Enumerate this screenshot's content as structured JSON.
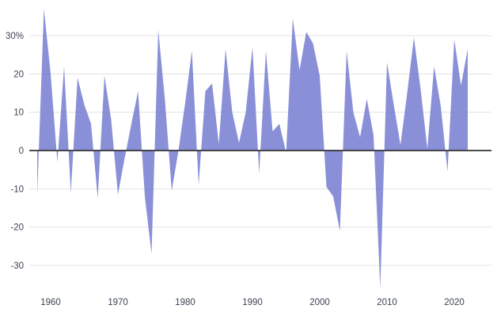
{
  "chart_data": {
    "type": "area",
    "title": "",
    "x_label": "",
    "y_label": "",
    "x": [
      1958,
      1959,
      1960,
      1961,
      1962,
      1963,
      1964,
      1965,
      1966,
      1967,
      1968,
      1969,
      1970,
      1971,
      1972,
      1973,
      1974,
      1975,
      1976,
      1977,
      1978,
      1979,
      1980,
      1981,
      1982,
      1983,
      1984,
      1985,
      1986,
      1987,
      1988,
      1989,
      1990,
      1991,
      1992,
      1993,
      1994,
      1995,
      1996,
      1997,
      1998,
      1999,
      2000,
      2001,
      2002,
      2003,
      2004,
      2005,
      2006,
      2007,
      2008,
      2009,
      2010,
      2011,
      2012,
      2013,
      2014,
      2015,
      2016,
      2017,
      2018,
      2019,
      2020,
      2021,
      2022
    ],
    "values": [
      -11.5,
      37,
      20,
      -3,
      22,
      -11,
      19,
      12,
      7,
      -12.5,
      19.5,
      8,
      -11.5,
      -2,
      7,
      15.5,
      -12,
      -27,
      31.5,
      13,
      -10.5,
      0,
      12.5,
      26,
      -9,
      15.5,
      17.5,
      1.7,
      26.5,
      10,
      2,
      10,
      27,
      -6,
      26,
      5,
      7,
      -0.5,
      34.5,
      21,
      31,
      28,
      19.5,
      -9.5,
      -12,
      -21,
      26,
      10,
      3.5,
      13.5,
      4,
      -36,
      23,
      12,
      1.5,
      15,
      29.5,
      16,
      0.5,
      22,
      11.5,
      -5.5,
      29,
      17,
      26.5
    ],
    "xlim": [
      1957.9,
      2022.2
    ],
    "ylim": [
      -37,
      38
    ],
    "grid": true,
    "legend": "none",
    "y_ticks": [
      {
        "value": 30,
        "label": "30%"
      },
      {
        "value": 20,
        "label": "20"
      },
      {
        "value": 10,
        "label": "10"
      },
      {
        "value": 0,
        "label": "0"
      },
      {
        "value": -10,
        "label": "-10"
      },
      {
        "value": -20,
        "label": "-20"
      },
      {
        "value": -30,
        "label": "-30"
      }
    ],
    "x_ticks": [
      {
        "value": 1960,
        "label": "1960"
      },
      {
        "value": 1970,
        "label": "1970"
      },
      {
        "value": 1980,
        "label": "1980"
      },
      {
        "value": 1990,
        "label": "1990"
      },
      {
        "value": 2000,
        "label": "2000"
      },
      {
        "value": 2010,
        "label": "2010"
      },
      {
        "value": 2020,
        "label": "2020"
      }
    ],
    "colors": {
      "area_fill": "#757dd1",
      "area_fill_opacity": 0.85,
      "gridline": "#e3e3e3",
      "zero_axis": "#333333",
      "tick_label": "#3d4354",
      "background": "#ffffff"
    }
  }
}
